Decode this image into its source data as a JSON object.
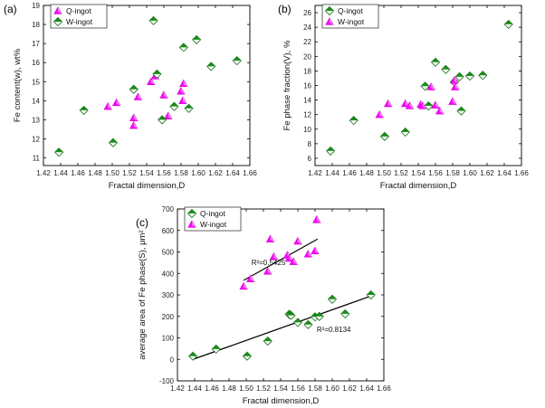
{
  "chart_data": [
    {
      "type": "scatter",
      "panel_label": "(a)",
      "xlabel": "Fractal dimension,D",
      "ylabel": "Fe content(w), wt%",
      "xlim": [
        1.42,
        1.66
      ],
      "ylim": [
        10.6,
        19
      ],
      "xticks": [
        "1.42",
        "1.44",
        "1.46",
        "1.48",
        "1.50",
        "1.52",
        "1.54",
        "1.56",
        "1.58",
        "1.60",
        "1.62",
        "1.64",
        "1.66"
      ],
      "yticks": [
        "11",
        "12",
        "13",
        "14",
        "15",
        "16",
        "17",
        "18",
        "19"
      ],
      "legend_position": "top-left",
      "series": [
        {
          "name": "Q-ingot",
          "marker": "triangle",
          "color": "#ff00ff",
          "points": [
            [
              1.495,
              13.7
            ],
            [
              1.505,
              13.9
            ],
            [
              1.525,
              13.1
            ],
            [
              1.525,
              12.7
            ],
            [
              1.53,
              14.2
            ],
            [
              1.545,
              15.0
            ],
            [
              1.55,
              15.3
            ],
            [
              1.56,
              14.3
            ],
            [
              1.565,
              13.2
            ],
            [
              1.58,
              14.5
            ],
            [
              1.582,
              14.0
            ],
            [
              1.583,
              14.9
            ]
          ]
        },
        {
          "name": "W-ingot",
          "marker": "diamond",
          "color": "#1a8c1a",
          "points": [
            [
              1.438,
              11.3
            ],
            [
              1.467,
              13.5
            ],
            [
              1.501,
              11.8
            ],
            [
              1.525,
              14.6
            ],
            [
              1.548,
              18.2
            ],
            [
              1.552,
              15.4
            ],
            [
              1.558,
              13.0
            ],
            [
              1.572,
              13.7
            ],
            [
              1.583,
              16.8
            ],
            [
              1.589,
              13.6
            ],
            [
              1.598,
              17.2
            ],
            [
              1.615,
              15.8
            ],
            [
              1.645,
              16.1
            ]
          ]
        }
      ]
    },
    {
      "type": "scatter",
      "panel_label": "(b)",
      "xlabel": "Fractal dimension,D",
      "ylabel": "Fe phase fraction(V), %",
      "xlim": [
        1.42,
        1.66
      ],
      "ylim": [
        5,
        27
      ],
      "xticks": [
        "1.42",
        "1.44",
        "1.46",
        "1.48",
        "1.50",
        "1.52",
        "1.54",
        "1.56",
        "1.58",
        "1.60",
        "1.62",
        "1.64",
        "1.66"
      ],
      "yticks": [
        "6",
        "8",
        "10",
        "12",
        "14",
        "16",
        "18",
        "20",
        "22",
        "24",
        "26"
      ],
      "legend_position": "top-left",
      "series": [
        {
          "name": "Q-ingot",
          "marker": "diamond",
          "color": "#1a8c1a",
          "points": [
            [
              1.438,
              7.0
            ],
            [
              1.465,
              11.2
            ],
            [
              1.501,
              9.0
            ],
            [
              1.525,
              9.6
            ],
            [
              1.548,
              15.9
            ],
            [
              1.552,
              13.2
            ],
            [
              1.56,
              19.2
            ],
            [
              1.572,
              18.2
            ],
            [
              1.582,
              16.5
            ],
            [
              1.588,
              17.2
            ],
            [
              1.59,
              12.5
            ],
            [
              1.6,
              17.3
            ],
            [
              1.615,
              17.4
            ],
            [
              1.645,
              24.4
            ]
          ]
        },
        {
          "name": "W-ingot",
          "marker": "triangle",
          "color": "#ff00ff",
          "points": [
            [
              1.495,
              12.0
            ],
            [
              1.505,
              13.5
            ],
            [
              1.525,
              13.5
            ],
            [
              1.53,
              13.2
            ],
            [
              1.543,
              13.4
            ],
            [
              1.545,
              13.2
            ],
            [
              1.555,
              15.8
            ],
            [
              1.56,
              13.3
            ],
            [
              1.565,
              12.5
            ],
            [
              1.58,
              13.8
            ],
            [
              1.582,
              16.7
            ],
            [
              1.583,
              15.8
            ]
          ]
        }
      ]
    },
    {
      "type": "scatter",
      "panel_label": "(c)",
      "xlabel": "Fractal dimension,D",
      "ylabel": "average area of Fe phase(S), μm²",
      "xlim": [
        1.42,
        1.66
      ],
      "ylim": [
        -100,
        700
      ],
      "xticks": [
        "1.42",
        "1.44",
        "1.46",
        "1.48",
        "1.50",
        "1.52",
        "1.54",
        "1.56",
        "1.58",
        "1.60",
        "1.62",
        "1.64",
        "1.66"
      ],
      "yticks": [
        "-100",
        "0",
        "100",
        "200",
        "300",
        "400",
        "500",
        "600",
        "700"
      ],
      "legend_position": "top-left",
      "annotations": [
        {
          "text": "R²=0.5425",
          "x": 1.506,
          "y": 440
        },
        {
          "text": "R²=0.8134",
          "x": 1.582,
          "y": 128
        }
      ],
      "trendlines": [
        {
          "series": "W-ingot",
          "x": [
            1.497,
            1.583
          ],
          "y": [
            368,
            560
          ]
        },
        {
          "series": "Q-ingot",
          "x": [
            1.438,
            1.645
          ],
          "y": [
            0,
            295
          ]
        }
      ],
      "series": [
        {
          "name": "Q-ingot",
          "marker": "diamond",
          "color": "#1a8c1a",
          "points": [
            [
              1.438,
              15
            ],
            [
              1.465,
              48
            ],
            [
              1.501,
              15
            ],
            [
              1.525,
              85
            ],
            [
              1.55,
              210
            ],
            [
              1.552,
              205
            ],
            [
              1.56,
              172
            ],
            [
              1.572,
              162
            ],
            [
              1.58,
              198
            ],
            [
              1.585,
              200
            ],
            [
              1.6,
              280
            ],
            [
              1.615,
              212
            ],
            [
              1.645,
              300
            ]
          ]
        },
        {
          "name": "W-ingot",
          "marker": "triangle",
          "color": "#ff00ff",
          "points": [
            [
              1.497,
              340
            ],
            [
              1.505,
              375
            ],
            [
              1.525,
              410
            ],
            [
              1.528,
              560
            ],
            [
              1.532,
              478
            ],
            [
              1.548,
              485
            ],
            [
              1.55,
              470
            ],
            [
              1.555,
              455
            ],
            [
              1.56,
              550
            ],
            [
              1.572,
              490
            ],
            [
              1.58,
              505
            ],
            [
              1.582,
              650
            ]
          ]
        }
      ]
    }
  ]
}
